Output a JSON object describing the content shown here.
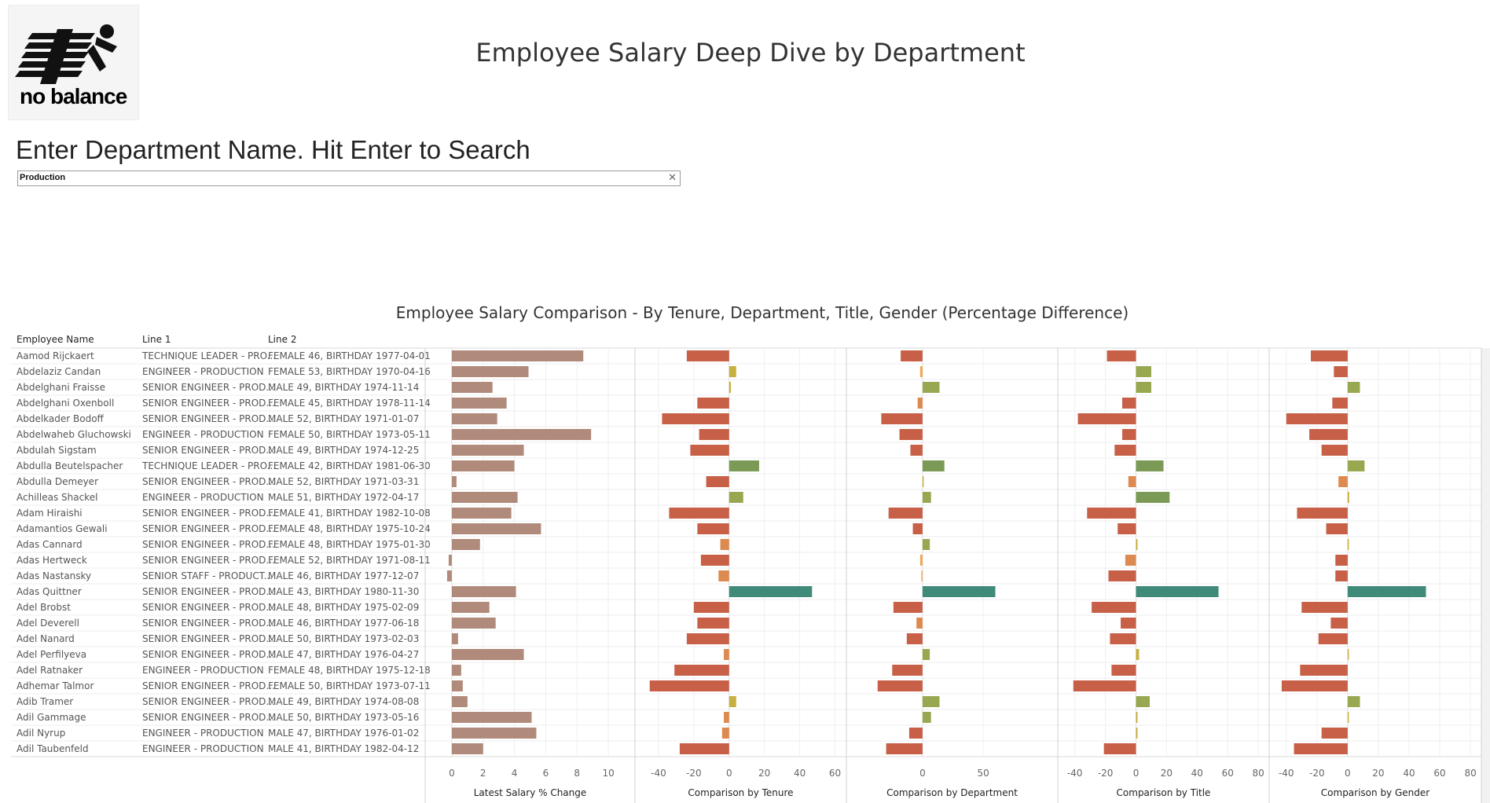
{
  "header": {
    "title": "Employee Salary Deep Dive by Department",
    "logo_text": "no balance"
  },
  "search": {
    "label": "Enter Department Name. Hit Enter to Search",
    "value": "Production",
    "clear_icon": "close-icon"
  },
  "chart_data": {
    "type": "bar",
    "title": "Employee Salary Comparison - By Tenure, Department, Title, Gender (Percentage Difference)",
    "columns": [
      "Employee Name",
      "Line 1",
      "Line 2"
    ],
    "rows": [
      {
        "name": "Aamod Rijckaert",
        "line1": "TECHNIQUE LEADER - PRO...",
        "line2": "FEMALE 46, BIRTHDAY 1977-04-01"
      },
      {
        "name": "Abdelaziz Candan",
        "line1": "ENGINEER - PRODUCTION",
        "line2": "FEMALE 53, BIRTHDAY 1970-04-16"
      },
      {
        "name": "Abdelghani Fraisse",
        "line1": "SENIOR ENGINEER - PROD...",
        "line2": "MALE 49, BIRTHDAY 1974-11-14"
      },
      {
        "name": "Abdelghani Oxenboll",
        "line1": "SENIOR ENGINEER - PROD...",
        "line2": "FEMALE 45, BIRTHDAY 1978-11-14"
      },
      {
        "name": "Abdelkader Bodoff",
        "line1": "SENIOR ENGINEER - PROD...",
        "line2": "MALE 52, BIRTHDAY 1971-01-07"
      },
      {
        "name": "Abdelwaheb Gluchowski",
        "line1": "ENGINEER - PRODUCTION",
        "line2": "FEMALE 50, BIRTHDAY 1973-05-11"
      },
      {
        "name": "Abdulah Sigstam",
        "line1": "SENIOR ENGINEER - PROD...",
        "line2": "MALE 49, BIRTHDAY 1974-12-25"
      },
      {
        "name": "Abdulla Beutelspacher",
        "line1": "TECHNIQUE LEADER - PRO...",
        "line2": "FEMALE 42, BIRTHDAY 1981-06-30"
      },
      {
        "name": "Abdulla Demeyer",
        "line1": "SENIOR ENGINEER - PROD...",
        "line2": "MALE 52, BIRTHDAY 1971-03-31"
      },
      {
        "name": "Achilleas Shackel",
        "line1": "ENGINEER - PRODUCTION",
        "line2": "MALE 51, BIRTHDAY 1972-04-17"
      },
      {
        "name": "Adam Hiraishi",
        "line1": "SENIOR ENGINEER - PROD...",
        "line2": "FEMALE 41, BIRTHDAY 1982-10-08"
      },
      {
        "name": "Adamantios Gewali",
        "line1": "SENIOR ENGINEER - PROD...",
        "line2": "FEMALE 48, BIRTHDAY 1975-10-24"
      },
      {
        "name": "Adas Cannard",
        "line1": "SENIOR ENGINEER - PROD...",
        "line2": "FEMALE 48, BIRTHDAY 1975-01-30"
      },
      {
        "name": "Adas Hertweck",
        "line1": "SENIOR ENGINEER - PROD...",
        "line2": "FEMALE 52, BIRTHDAY 1971-08-11"
      },
      {
        "name": "Adas Nastansky",
        "line1": "SENIOR STAFF - PRODUCT...",
        "line2": "MALE 46, BIRTHDAY 1977-12-07"
      },
      {
        "name": "Adas Quittner",
        "line1": "SENIOR ENGINEER - PROD...",
        "line2": "MALE 43, BIRTHDAY 1980-11-30"
      },
      {
        "name": "Adel Brobst",
        "line1": "SENIOR ENGINEER - PROD...",
        "line2": "MALE 48, BIRTHDAY 1975-02-09"
      },
      {
        "name": "Adel Deverell",
        "line1": "SENIOR ENGINEER - PROD...",
        "line2": "MALE 46, BIRTHDAY 1977-06-18"
      },
      {
        "name": "Adel Nanard",
        "line1": "SENIOR ENGINEER - PROD...",
        "line2": "MALE 50, BIRTHDAY 1973-02-03"
      },
      {
        "name": "Adel Perfilyeva",
        "line1": "SENIOR ENGINEER - PROD...",
        "line2": "MALE 47, BIRTHDAY 1976-04-27"
      },
      {
        "name": "Adel Ratnaker",
        "line1": "ENGINEER - PRODUCTION",
        "line2": "FEMALE 48, BIRTHDAY 1975-12-18"
      },
      {
        "name": "Adhemar Talmor",
        "line1": "SENIOR ENGINEER - PROD...",
        "line2": "FEMALE 50, BIRTHDAY 1973-07-11"
      },
      {
        "name": "Adib Tramer",
        "line1": "SENIOR ENGINEER - PROD...",
        "line2": "MALE 49, BIRTHDAY 1974-08-08"
      },
      {
        "name": "Adil Gammage",
        "line1": "SENIOR ENGINEER - PROD...",
        "line2": "MALE 50, BIRTHDAY 1973-05-16"
      },
      {
        "name": "Adil Nyrup",
        "line1": "ENGINEER - PRODUCTION",
        "line2": "MALE 47, BIRTHDAY 1976-01-02"
      },
      {
        "name": "Adil Taubenfeld",
        "line1": "ENGINEER - PRODUCTION",
        "line2": "MALE 41, BIRTHDAY 1982-04-12"
      }
    ],
    "panels": [
      {
        "xlabel": "Latest Salary % Change",
        "xlim": [
          -1,
          11
        ],
        "ticks": [
          0,
          2,
          4,
          6,
          8,
          10
        ],
        "values": [
          8.4,
          4.9,
          2.6,
          3.5,
          2.9,
          8.9,
          4.6,
          4.0,
          0.3,
          4.2,
          3.8,
          5.7,
          1.8,
          -0.2,
          -0.3,
          4.1,
          2.4,
          2.8,
          0.4,
          4.6,
          0.6,
          0.7,
          1.0,
          5.1,
          5.4,
          2.0
        ]
      },
      {
        "xlabel": "Comparison by Tenure",
        "xlim": [
          -48,
          62
        ],
        "ticks": [
          -40,
          -20,
          0,
          20,
          40,
          60
        ],
        "values": [
          -24,
          4,
          1,
          -18,
          -38,
          -17,
          -22,
          17,
          -13,
          8,
          -34,
          -18,
          -5,
          -16,
          -6,
          47,
          -20,
          -18,
          -24,
          -3,
          -31,
          -45,
          4,
          -3,
          -4,
          -28
        ]
      },
      {
        "xlabel": "Comparison by Department",
        "xlim": [
          -55,
          105
        ],
        "ticks": [
          0,
          50
        ],
        "values": [
          -18,
          -2,
          14,
          -4,
          -34,
          -19,
          -10,
          18,
          0,
          7,
          -28,
          -8,
          6,
          -2,
          -1,
          60,
          -24,
          -5,
          -13,
          6,
          -25,
          -37,
          14,
          7,
          -11,
          -30
        ]
      },
      {
        "xlabel": "Comparison by Title",
        "xlim": [
          -45,
          82
        ],
        "ticks": [
          -40,
          -20,
          0,
          20,
          40,
          60,
          80
        ],
        "values": [
          -19,
          10,
          10,
          -9,
          -38,
          -9,
          -14,
          18,
          -5,
          22,
          -32,
          -12,
          1,
          -7,
          -18,
          54,
          -29,
          -10,
          -17,
          2,
          -16,
          -41,
          9,
          1,
          1,
          -21
        ]
      },
      {
        "xlabel": "Comparison by Gender",
        "xlim": [
          -45,
          82
        ],
        "ticks": [
          -40,
          -20,
          0,
          20,
          40,
          60,
          80
        ],
        "values": [
          -24,
          -9,
          8,
          -10,
          -40,
          -25,
          -17,
          11,
          -6,
          1,
          -33,
          -14,
          0,
          -8,
          -8,
          51,
          -30,
          -11,
          -19,
          0,
          -31,
          -43,
          8,
          0,
          -17,
          -35
        ]
      }
    ],
    "colors": {
      "salary_bar": "#b08a7a",
      "strong_negative": "#c86048",
      "mild_negative": "#dd8a50",
      "slight_negative": "#f0a858",
      "slight_positive": "#c8b040",
      "mild_positive": "#98a850",
      "positive": "#7a9a55",
      "strong_positive": "#3f8a78"
    }
  }
}
